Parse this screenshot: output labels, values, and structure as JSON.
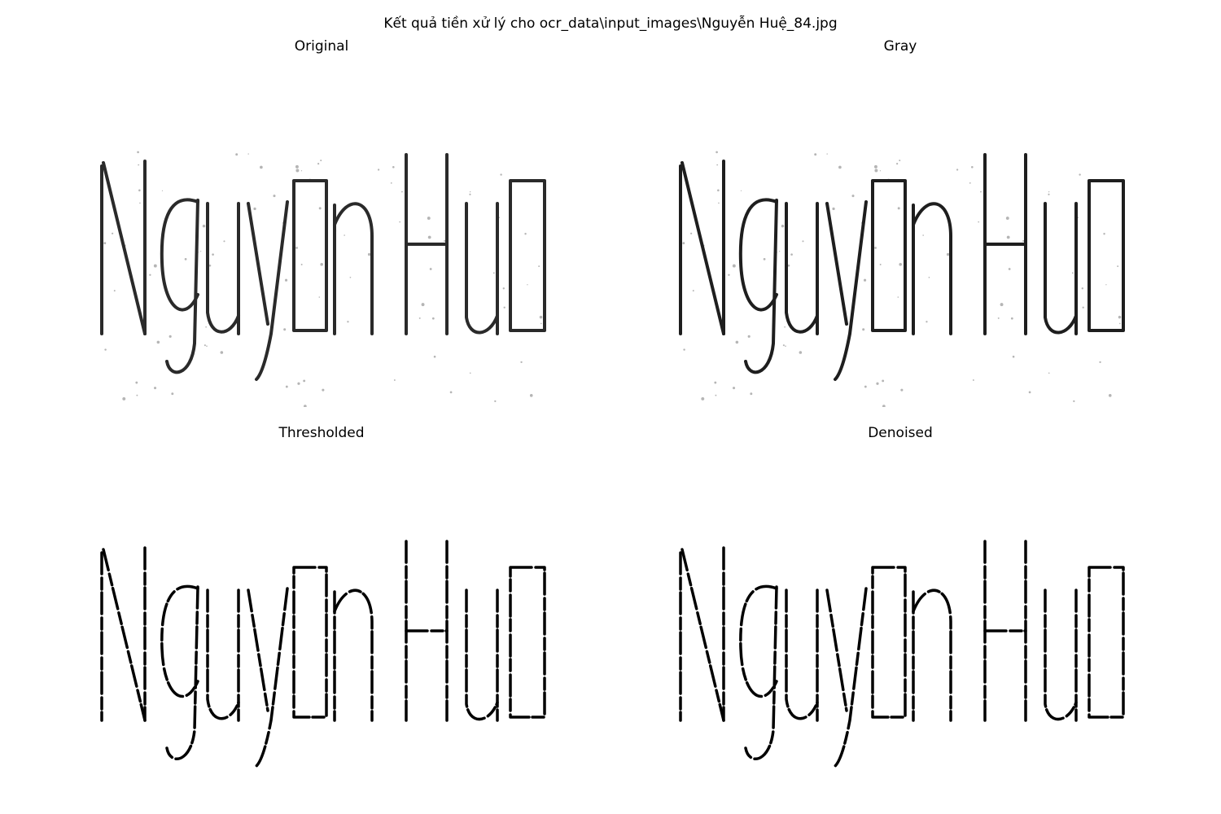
{
  "figure": {
    "suptitle": "Kết quả tiền xử lý cho ocr_data\\input_images\\Nguyễn Huệ_84.jpg"
  },
  "panels": [
    {
      "title": "Original",
      "image_content": "Nguyễn Huệ"
    },
    {
      "title": "Gray",
      "image_content": "Nguyễn Huệ"
    },
    {
      "title": "Thresholded",
      "image_content": "Nguyễn Huệ"
    },
    {
      "title": "Denoised",
      "image_content": "Nguyễn Huệ"
    }
  ],
  "colors": {
    "background": "#ffffff",
    "ink_soft": "#2a2a2a",
    "ink_gray": "#1e1e1e",
    "ink_binary": "#000000",
    "noise": "#b5b5b5"
  }
}
